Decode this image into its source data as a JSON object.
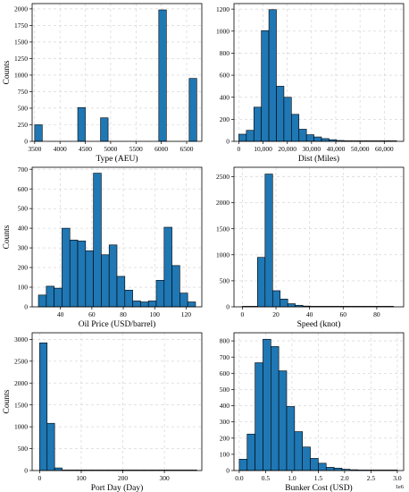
{
  "colors": {
    "bar": "#1f77b4",
    "edge": "#000000",
    "grid": "#d0d0d0"
  },
  "chart_data": [
    {
      "type": "bar",
      "xlabel": "Type (AEU)",
      "ylabel": "Counts",
      "xlim": [
        3450,
        6800
      ],
      "ylim": [
        0,
        2080
      ],
      "bin_width": 150,
      "xticks": [
        3500,
        4000,
        4500,
        5000,
        5500,
        6000,
        6500
      ],
      "yticks": [
        0,
        250,
        500,
        750,
        1000,
        1250,
        1500,
        1750,
        2000
      ],
      "grid": true,
      "bins": [
        {
          "x0": 3500,
          "value": 250
        },
        {
          "x0": 3650,
          "value": 0
        },
        {
          "x0": 3800,
          "value": 0
        },
        {
          "x0": 3950,
          "value": 0
        },
        {
          "x0": 4100,
          "value": 0
        },
        {
          "x0": 4250,
          "value": 0
        },
        {
          "x0": 4350,
          "value": 510
        },
        {
          "x0": 4500,
          "value": 0
        },
        {
          "x0": 4650,
          "value": 0
        },
        {
          "x0": 4800,
          "value": 355
        },
        {
          "x0": 4950,
          "value": 0
        },
        {
          "x0": 5100,
          "value": 0
        },
        {
          "x0": 5250,
          "value": 0
        },
        {
          "x0": 5400,
          "value": 0
        },
        {
          "x0": 5550,
          "value": 0
        },
        {
          "x0": 5700,
          "value": 0
        },
        {
          "x0": 5850,
          "value": 0
        },
        {
          "x0": 5950,
          "value": 1985
        },
        {
          "x0": 6100,
          "value": 0
        },
        {
          "x0": 6250,
          "value": 0
        },
        {
          "x0": 6400,
          "value": 0
        },
        {
          "x0": 6550,
          "value": 950
        }
      ]
    },
    {
      "type": "bar",
      "xlabel": "Dist (Miles)",
      "ylabel": "",
      "xlim": [
        -2000,
        68000
      ],
      "ylim": [
        0,
        1250
      ],
      "bin_width": 3100,
      "xticks": [
        0,
        10000,
        20000,
        30000,
        40000,
        50000,
        60000
      ],
      "xticklabels": [
        "0",
        "10,000",
        "20,000",
        "30,000",
        "40,000",
        "50,000",
        "60,000"
      ],
      "yticks": [
        0,
        200,
        400,
        600,
        800,
        1000,
        1200
      ],
      "grid": true,
      "bins": [
        {
          "x0": 0,
          "value": 65
        },
        {
          "x0": 3100,
          "value": 100
        },
        {
          "x0": 6200,
          "value": 310
        },
        {
          "x0": 9300,
          "value": 1005
        },
        {
          "x0": 12400,
          "value": 1195
        },
        {
          "x0": 15500,
          "value": 500
        },
        {
          "x0": 18600,
          "value": 400
        },
        {
          "x0": 21700,
          "value": 245
        },
        {
          "x0": 24800,
          "value": 110
        },
        {
          "x0": 27900,
          "value": 60
        },
        {
          "x0": 31000,
          "value": 40
        },
        {
          "x0": 34100,
          "value": 25
        },
        {
          "x0": 37200,
          "value": 15
        },
        {
          "x0": 40300,
          "value": 8
        },
        {
          "x0": 43400,
          "value": 5
        },
        {
          "x0": 46500,
          "value": 3
        },
        {
          "x0": 49600,
          "value": 2
        },
        {
          "x0": 52700,
          "value": 2
        },
        {
          "x0": 55800,
          "value": 1
        },
        {
          "x0": 58900,
          "value": 1
        },
        {
          "x0": 62000,
          "value": 1
        }
      ]
    },
    {
      "type": "bar",
      "xlabel": "Oil Price (USD/barrel)",
      "ylabel": "Counts",
      "xlim": [
        22,
        130
      ],
      "ylim": [
        0,
        710
      ],
      "bin_width": 5,
      "xticks": [
        40,
        60,
        80,
        100,
        120
      ],
      "yticks": [
        0,
        100,
        200,
        300,
        400,
        500,
        600,
        700
      ],
      "grid": true,
      "bins": [
        {
          "x0": 26,
          "value": 60
        },
        {
          "x0": 31,
          "value": 105
        },
        {
          "x0": 36,
          "value": 95
        },
        {
          "x0": 41,
          "value": 400
        },
        {
          "x0": 46,
          "value": 340
        },
        {
          "x0": 51,
          "value": 335
        },
        {
          "x0": 56,
          "value": 285
        },
        {
          "x0": 61,
          "value": 680
        },
        {
          "x0": 66,
          "value": 265
        },
        {
          "x0": 71,
          "value": 315
        },
        {
          "x0": 76,
          "value": 155
        },
        {
          "x0": 81,
          "value": 85
        },
        {
          "x0": 86,
          "value": 30
        },
        {
          "x0": 91,
          "value": 25
        },
        {
          "x0": 96,
          "value": 30
        },
        {
          "x0": 101,
          "value": 135
        },
        {
          "x0": 106,
          "value": 405
        },
        {
          "x0": 111,
          "value": 210
        },
        {
          "x0": 116,
          "value": 70
        },
        {
          "x0": 121,
          "value": 25
        }
      ]
    },
    {
      "type": "bar",
      "xlabel": "Speed (knot)",
      "ylabel": "",
      "xlim": [
        -5,
        96
      ],
      "ylim": [
        0,
        2680
      ],
      "bin_width": 4.5,
      "xticks": [
        0,
        20,
        40,
        60,
        80
      ],
      "yticks": [
        0,
        500,
        1000,
        1500,
        2000,
        2500
      ],
      "grid": true,
      "bins": [
        {
          "x0": 0,
          "value": 5
        },
        {
          "x0": 4.5,
          "value": 10
        },
        {
          "x0": 9,
          "value": 950
        },
        {
          "x0": 13.5,
          "value": 2550
        },
        {
          "x0": 18,
          "value": 310
        },
        {
          "x0": 22.5,
          "value": 150
        },
        {
          "x0": 27,
          "value": 60
        },
        {
          "x0": 31.5,
          "value": 30
        },
        {
          "x0": 36,
          "value": 15
        },
        {
          "x0": 40.5,
          "value": 8
        },
        {
          "x0": 45,
          "value": 5
        },
        {
          "x0": 49.5,
          "value": 3
        },
        {
          "x0": 54,
          "value": 2
        },
        {
          "x0": 58.5,
          "value": 2
        },
        {
          "x0": 63,
          "value": 1
        },
        {
          "x0": 67.5,
          "value": 1
        },
        {
          "x0": 72,
          "value": 1
        },
        {
          "x0": 76.5,
          "value": 1
        },
        {
          "x0": 81,
          "value": 1
        },
        {
          "x0": 85.5,
          "value": 1
        }
      ]
    },
    {
      "type": "bar",
      "xlabel": "Port Day (Day)",
      "ylabel": "Counts",
      "xlim": [
        -18,
        390
      ],
      "ylim": [
        0,
        3150
      ],
      "bin_width": 18,
      "xticks": [
        0,
        100,
        200,
        300
      ],
      "yticks": [
        0,
        500,
        1000,
        1500,
        2000,
        2500,
        3000
      ],
      "grid": true,
      "bins": [
        {
          "x0": 0,
          "value": 2920
        },
        {
          "x0": 18,
          "value": 1080
        },
        {
          "x0": 36,
          "value": 60
        },
        {
          "x0": 54,
          "value": 5
        },
        {
          "x0": 72,
          "value": 2
        },
        {
          "x0": 90,
          "value": 1
        },
        {
          "x0": 108,
          "value": 1
        },
        {
          "x0": 126,
          "value": 1
        },
        {
          "x0": 144,
          "value": 1
        },
        {
          "x0": 162,
          "value": 1
        },
        {
          "x0": 180,
          "value": 1
        },
        {
          "x0": 198,
          "value": 1
        },
        {
          "x0": 216,
          "value": 1
        },
        {
          "x0": 234,
          "value": 1
        },
        {
          "x0": 252,
          "value": 1
        },
        {
          "x0": 270,
          "value": 1
        },
        {
          "x0": 288,
          "value": 1
        },
        {
          "x0": 306,
          "value": 1
        },
        {
          "x0": 324,
          "value": 1
        },
        {
          "x0": 342,
          "value": 1
        },
        {
          "x0": 360,
          "value": 1
        }
      ]
    },
    {
      "type": "bar",
      "xlabel": "Bunker Cost (USD)",
      "ylabel": "",
      "offset_label": "1e6",
      "xlim": [
        -0.1,
        3.12
      ],
      "ylim": [
        0,
        850
      ],
      "bin_width": 0.15,
      "xticks": [
        0.0,
        0.5,
        1.0,
        1.5,
        2.0,
        2.5,
        3.0
      ],
      "xticklabels": [
        "0.0",
        "0.5",
        "1.0",
        "1.5",
        "2.0",
        "2.5",
        "3.0"
      ],
      "yticks": [
        0,
        100,
        200,
        300,
        400,
        500,
        600,
        700,
        800
      ],
      "grid": true,
      "bins": [
        {
          "x0": 0.0,
          "value": 70
        },
        {
          "x0": 0.15,
          "value": 225
        },
        {
          "x0": 0.3,
          "value": 665
        },
        {
          "x0": 0.45,
          "value": 810
        },
        {
          "x0": 0.6,
          "value": 765
        },
        {
          "x0": 0.75,
          "value": 615
        },
        {
          "x0": 0.9,
          "value": 395
        },
        {
          "x0": 1.05,
          "value": 240
        },
        {
          "x0": 1.2,
          "value": 145
        },
        {
          "x0": 1.35,
          "value": 75
        },
        {
          "x0": 1.5,
          "value": 45
        },
        {
          "x0": 1.65,
          "value": 20
        },
        {
          "x0": 1.8,
          "value": 15
        },
        {
          "x0": 1.95,
          "value": 8
        },
        {
          "x0": 2.1,
          "value": 5
        },
        {
          "x0": 2.25,
          "value": 3
        },
        {
          "x0": 2.4,
          "value": 2
        },
        {
          "x0": 2.55,
          "value": 1
        },
        {
          "x0": 2.7,
          "value": 1
        },
        {
          "x0": 2.85,
          "value": 1
        }
      ]
    }
  ]
}
